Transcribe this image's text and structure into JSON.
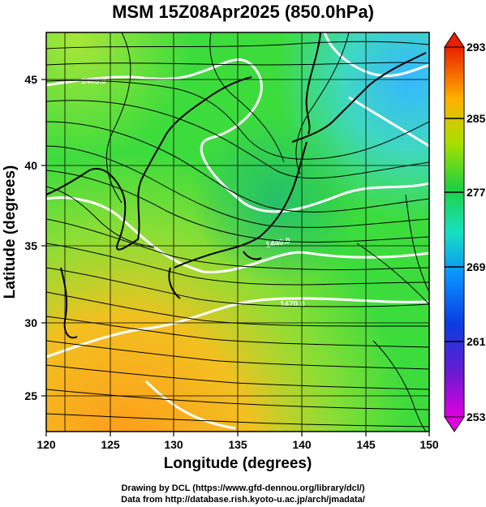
{
  "title": "MSM 15Z08Apr2025 (850.0hPa)",
  "x_axis": {
    "label": "Longitude (degrees)",
    "min": 120,
    "max": 150,
    "ticks": [
      "120",
      "125",
      "130",
      "135",
      "140",
      "145",
      "150"
    ]
  },
  "y_axis": {
    "label": "Latitude  (degrees)",
    "min": 22.4,
    "max": 47.6,
    "ticks": [
      "25",
      "30",
      "35",
      "40",
      "45"
    ]
  },
  "colorbar": {
    "min": 253,
    "max": 293,
    "labels": [
      "293",
      "285",
      "277",
      "269",
      "261",
      "253"
    ]
  },
  "contour_labels": [
    "1485.0",
    "1440.0",
    "1470.0"
  ],
  "credits": {
    "line1": "Drawing by DCL (https://www.gfd-dennou.org/library/dcl/)",
    "line2": "Data from http://database.rish.kyoto-u.ac.jp/arch/jmadata/"
  },
  "colors": {
    "warm": "#f5a623",
    "mid": "#3ddc3d",
    "cool": "#3fc8e8",
    "contour": "#ffffff"
  }
}
